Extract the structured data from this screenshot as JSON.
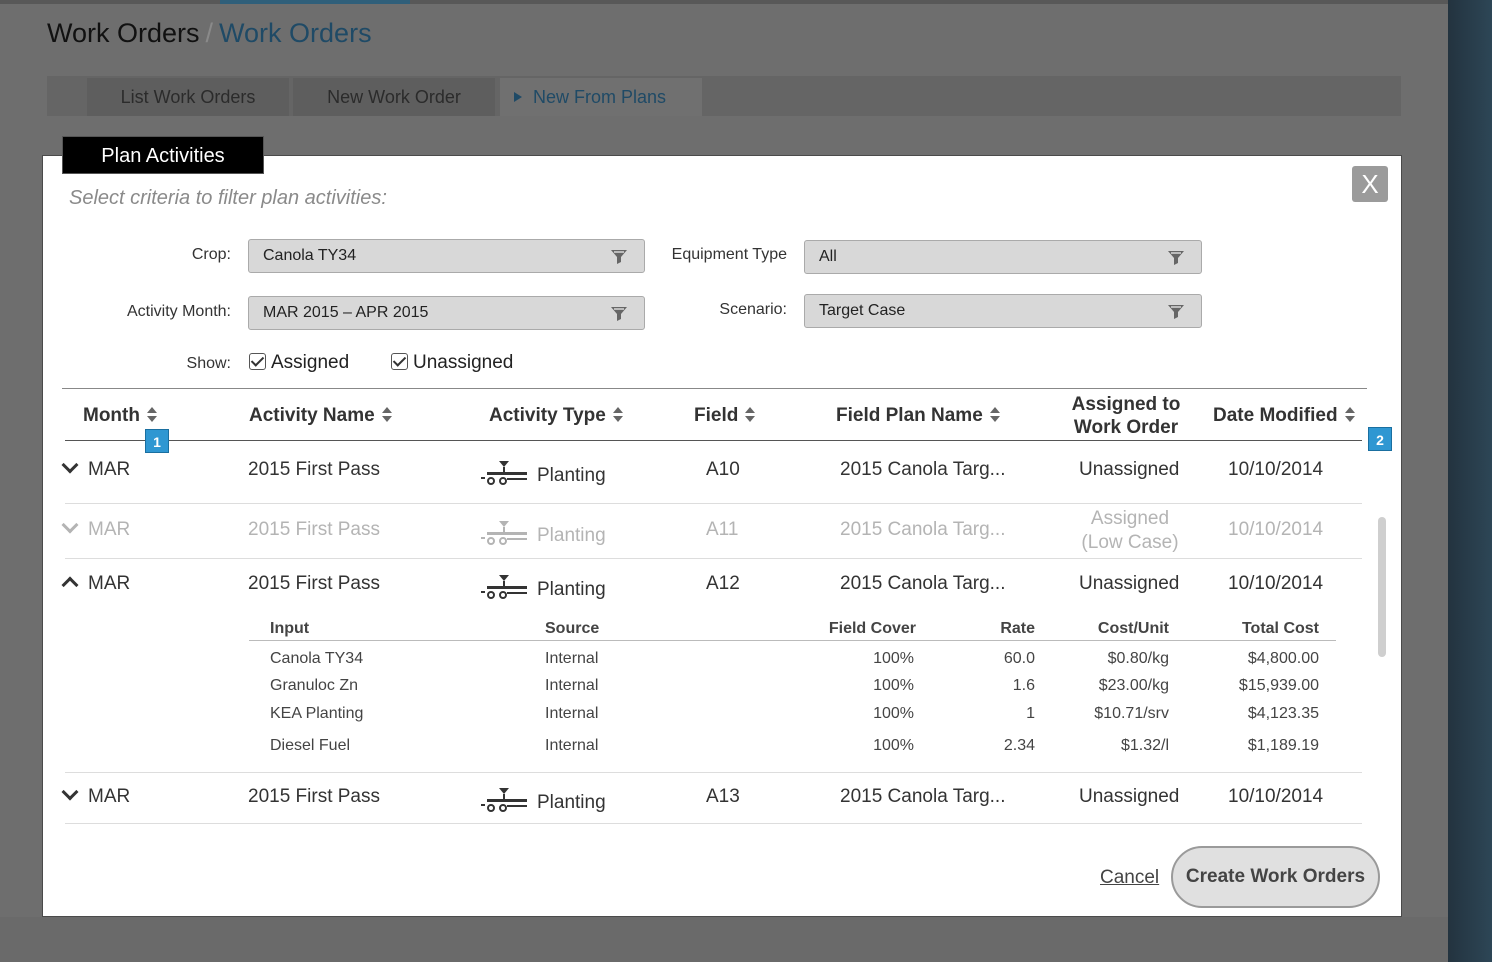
{
  "breadcrumb": {
    "root": "Work Orders",
    "separator": "/",
    "current": "Work Orders"
  },
  "tabs": [
    {
      "label": "List Work Orders"
    },
    {
      "label": "New Work Order"
    },
    {
      "label": "New From Plans",
      "active": true
    }
  ],
  "modal": {
    "tab_label": "Plan Activities",
    "close_label": "X",
    "filter_hint": "Select criteria to filter plan activities:",
    "filters": {
      "crop": {
        "label": "Crop:",
        "value": "Canola TY34",
        "icon": "funnel-icon"
      },
      "equipment_type": {
        "label": "Equipment Type",
        "value": "All",
        "icon": "funnel-icon"
      },
      "activity_month": {
        "label": "Activity Month:",
        "value": "MAR 2015 – APR 2015",
        "icon": "funnel-icon"
      },
      "scenario": {
        "label": "Scenario:",
        "value": "Target Case",
        "icon": "funnel-icon"
      }
    },
    "show": {
      "label": "Show:",
      "assigned": "Assigned",
      "unassigned": "Unassigned"
    },
    "table": {
      "headers": {
        "month": "Month",
        "activity_name": "Activity Name",
        "activity_type": "Activity Type",
        "field": "Field",
        "field_plan_name": "Field Plan Name",
        "assigned_line1": "Assigned to",
        "assigned_line2": "Work Order",
        "date_modified": "Date Modified"
      },
      "badges": [
        "1",
        "2"
      ],
      "rows": [
        {
          "month": "MAR",
          "activity_name": "2015 First Pass",
          "activity_type": "Planting",
          "field": "A10",
          "field_plan_name": "2015 Canola Targ...",
          "assigned": "Unassigned",
          "date_modified": "10/10/2014"
        },
        {
          "month": "MAR",
          "activity_name": "2015 First Pass",
          "activity_type": "Planting",
          "field": "A11",
          "field_plan_name": "2015 Canola Targ...",
          "assigned_line1": "Assigned",
          "assigned_line2": "(Low Case)",
          "date_modified": "10/10/2014"
        },
        {
          "month": "MAR",
          "activity_name": "2015 First Pass",
          "activity_type": "Planting",
          "field": "A12",
          "field_plan_name": "2015 Canola Targ...",
          "assigned": "Unassigned",
          "date_modified": "10/10/2014"
        },
        {
          "month": "MAR",
          "activity_name": "2015 First Pass",
          "activity_type": "Planting",
          "field": "A13",
          "field_plan_name": "2015 Canola Targ...",
          "assigned": "Unassigned",
          "date_modified": "10/10/2014"
        }
      ],
      "detail": {
        "headers": {
          "input": "Input",
          "source": "Source",
          "field_cover": "Field Cover",
          "rate": "Rate",
          "cost_unit": "Cost/Unit",
          "total_cost": "Total Cost"
        },
        "rows": [
          {
            "input": "Canola TY34",
            "source": "Internal",
            "field_cover": "100%",
            "rate": "60.0",
            "cost_unit": "$0.80/kg",
            "total_cost": "$4,800.00"
          },
          {
            "input": "Granuloc Zn",
            "source": "Internal",
            "field_cover": "100%",
            "rate": "1.6",
            "cost_unit": "$23.00/kg",
            "total_cost": "$15,939.00"
          },
          {
            "input": "KEA Planting",
            "source": "Internal",
            "field_cover": "100%",
            "rate": "1",
            "cost_unit": "$10.71/srv",
            "total_cost": "$4,123.35"
          },
          {
            "input": "Diesel Fuel",
            "source": "Internal",
            "field_cover": "100%",
            "rate": "2.34",
            "cost_unit": "$1.32/l",
            "total_cost": "$1,189.19"
          }
        ]
      }
    },
    "actions": {
      "cancel": "Cancel",
      "create": "Create Work Orders"
    }
  },
  "icons": {
    "row_type": "planter-icon",
    "expand": "chevron-down-icon",
    "collapse": "chevron-up-icon",
    "sort": "sort-icon"
  }
}
